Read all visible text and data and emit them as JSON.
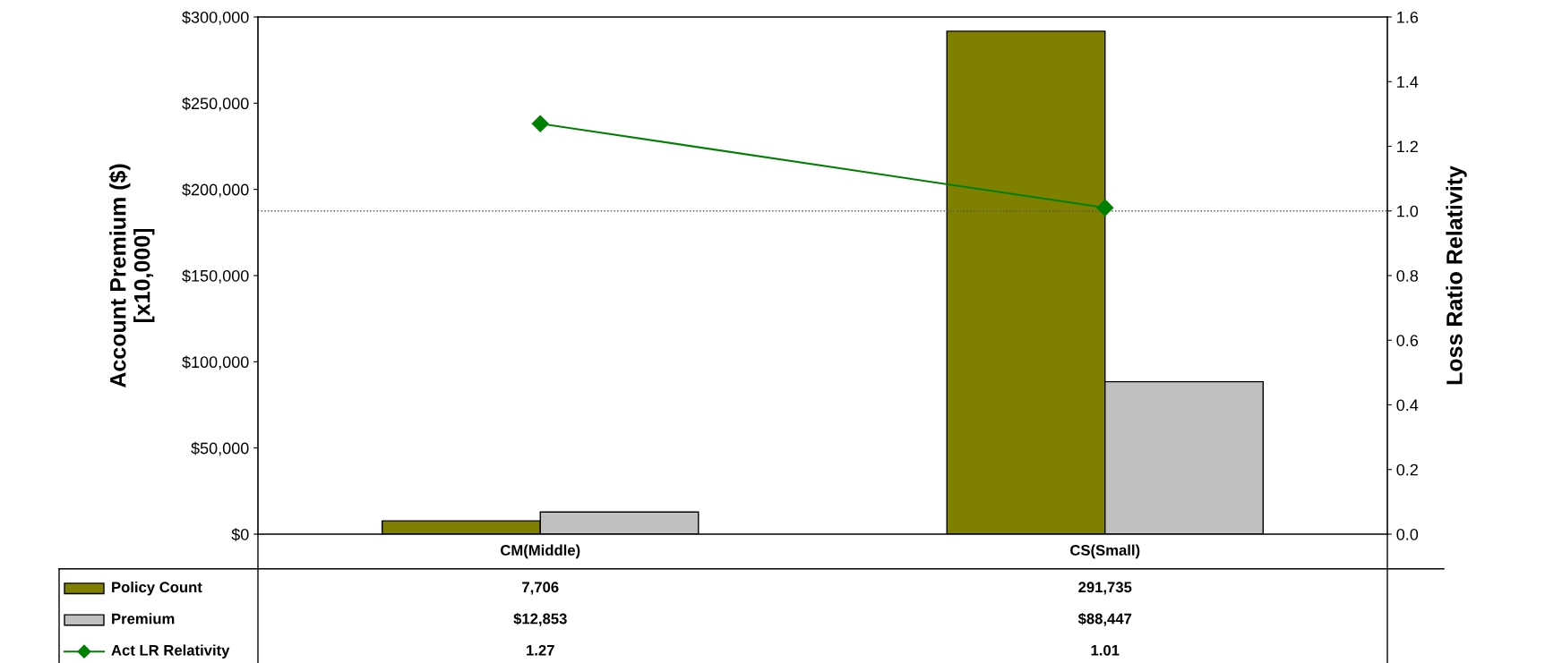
{
  "chart_data": {
    "type": "bar",
    "ylabel": "Account Premium ($)\n[x10,000]",
    "y2label": "Loss Ratio Relativity",
    "categories": [
      "CM(Middle)",
      "CS(Small)"
    ],
    "series": [
      {
        "name": "Policy Count",
        "color": "#808000",
        "values": [
          7706,
          291735
        ],
        "value_labels": [
          "7,706",
          "291,735"
        ]
      },
      {
        "name": "Premium",
        "color": "#c0c0c0",
        "values": [
          12853,
          88447
        ],
        "value_labels": [
          "$12,853",
          "$88,447"
        ]
      },
      {
        "name": "Act LR Relativity",
        "type": "line",
        "axis": "y2",
        "color": "#008000",
        "marker": "diamond",
        "values": [
          1.27,
          1.01
        ],
        "value_labels": [
          "1.27",
          "1.01"
        ]
      }
    ],
    "ylim": [
      0,
      300000
    ],
    "yticks": [
      {
        "value": 0,
        "label": "$0"
      },
      {
        "value": 50000,
        "label": "$50,000"
      },
      {
        "value": 100000,
        "label": "$100,000"
      },
      {
        "value": 150000,
        "label": "$150,000"
      },
      {
        "value": 200000,
        "label": "$200,000"
      },
      {
        "value": 250000,
        "label": "$250,000"
      },
      {
        "value": 300000,
        "label": "$300,000"
      }
    ],
    "y2lim": [
      0,
      1.6
    ],
    "y2ticks": [
      {
        "value": 0,
        "label": "0.0"
      },
      {
        "value": 0.2,
        "label": "0.2"
      },
      {
        "value": 0.4,
        "label": "0.4"
      },
      {
        "value": 0.6,
        "label": "0.6"
      },
      {
        "value": 0.8,
        "label": "0.8"
      },
      {
        "value": 1.0,
        "label": "1.0"
      },
      {
        "value": 1.2,
        "label": "1.2"
      },
      {
        "value": 1.4,
        "label": "1.4"
      },
      {
        "value": 1.6,
        "label": "1.6"
      }
    ],
    "ref_lines": [
      {
        "axis": "y2",
        "value": 1.0,
        "color": "#555555",
        "line_style": "dotted"
      }
    ],
    "legend": "bottom",
    "grid": false
  }
}
